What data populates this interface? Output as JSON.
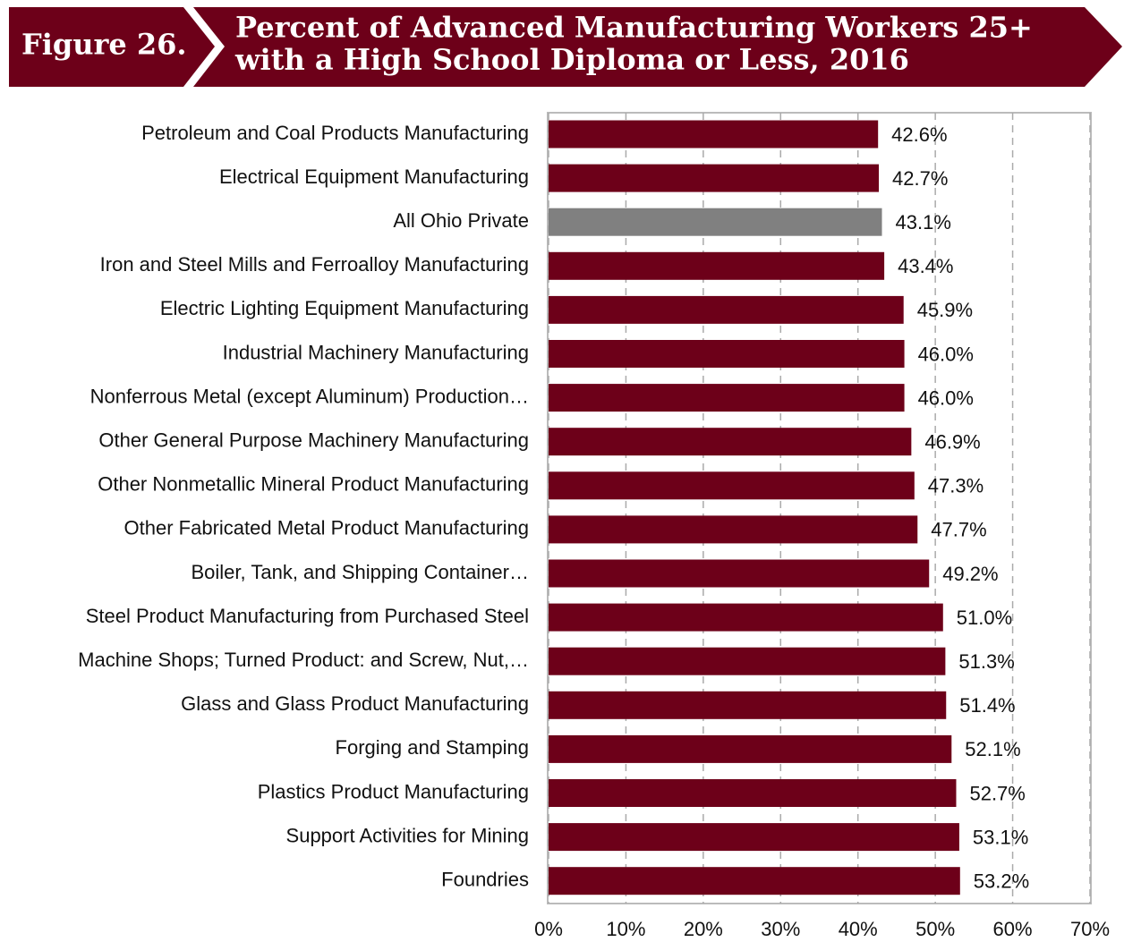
{
  "chart_data": {
    "type": "bar",
    "orientation": "horizontal",
    "figure_label": "Figure 26.",
    "title_lines": [
      "Percent of Advanced Manufacturing Workers 25+",
      "with a High School Diploma or Less, 2016"
    ],
    "categories": [
      "Petroleum and Coal Products Manufacturing",
      "Electrical Equipment Manufacturing",
      "All Ohio Private",
      "Iron and Steel Mills and Ferroalloy Manufacturing",
      "Electric Lighting Equipment Manufacturing",
      "Industrial Machinery Manufacturing",
      "Nonferrous Metal (except Aluminum) Production…",
      "Other General Purpose Machinery Manufacturing",
      "Other Nonmetallic Mineral Product Manufacturing",
      "Other Fabricated Metal Product Manufacturing",
      "Boiler, Tank, and Shipping Container…",
      "Steel Product Manufacturing from Purchased Steel",
      "Machine Shops; Turned Product: and Screw, Nut,…",
      "Glass and Glass Product Manufacturing",
      "Forging and Stamping",
      "Plastics Product Manufacturing",
      "Support Activities for Mining",
      "Foundries"
    ],
    "values": [
      42.6,
      42.7,
      43.1,
      43.4,
      45.9,
      46.0,
      46.0,
      46.9,
      47.3,
      47.7,
      49.2,
      51.0,
      51.3,
      51.4,
      52.1,
      52.7,
      53.1,
      53.2
    ],
    "value_labels": [
      "42.6%",
      "42.7%",
      "43.1%",
      "43.4%",
      "45.9%",
      "46.0%",
      "46.0%",
      "46.9%",
      "47.3%",
      "47.7%",
      "49.2%",
      "51.0%",
      "51.3%",
      "51.4%",
      "52.1%",
      "52.7%",
      "53.1%",
      "53.2%"
    ],
    "colors": [
      "#6d0019",
      "#6d0019",
      "#808080",
      "#6d0019",
      "#6d0019",
      "#6d0019",
      "#6d0019",
      "#6d0019",
      "#6d0019",
      "#6d0019",
      "#6d0019",
      "#6d0019",
      "#6d0019",
      "#6d0019",
      "#6d0019",
      "#6d0019",
      "#6d0019",
      "#6d0019"
    ],
    "xlim": [
      0,
      70
    ],
    "xticks": [
      {
        "value": 0,
        "label": "0%"
      },
      {
        "value": 10,
        "label": "10%"
      },
      {
        "value": 20,
        "label": "20%"
      },
      {
        "value": 30,
        "label": "30%"
      },
      {
        "value": 40,
        "label": "40%"
      },
      {
        "value": 50,
        "label": "50%"
      },
      {
        "value": 60,
        "label": "60%"
      },
      {
        "value": 70,
        "label": "70%"
      }
    ],
    "grid": true
  }
}
